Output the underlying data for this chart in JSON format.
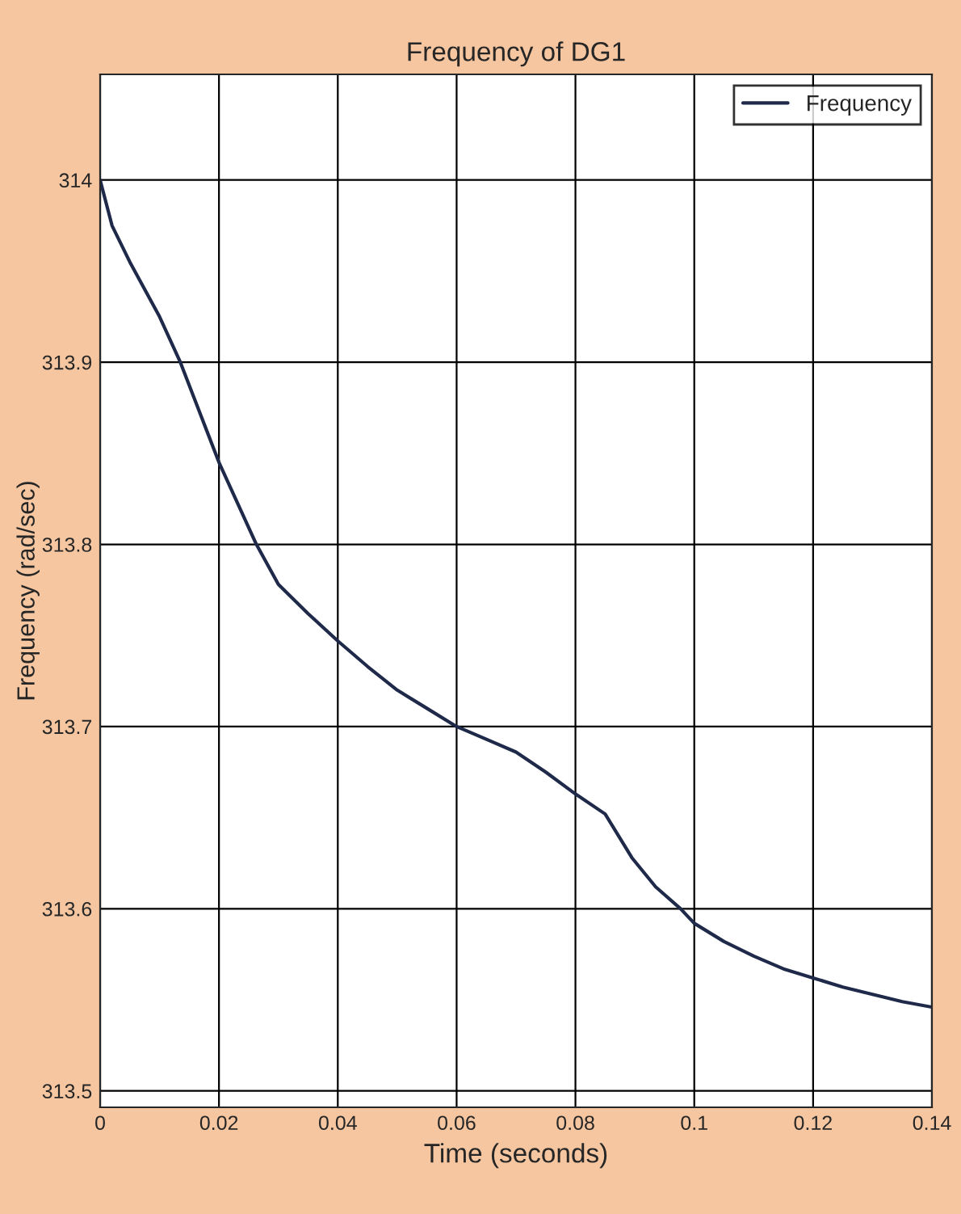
{
  "chart_data": {
    "type": "line",
    "title": "Frequency of DG1",
    "xlabel": "Time (seconds)",
    "ylabel": "Frequency (rad/sec)",
    "series": [
      {
        "name": "Frequency",
        "color": "#1f2a4a",
        "x": [
          0,
          0.002,
          0.005,
          0.01,
          0.0135,
          0.02,
          0.0263,
          0.03,
          0.035,
          0.04,
          0.045,
          0.05,
          0.055,
          0.06,
          0.065,
          0.07,
          0.075,
          0.08,
          0.085,
          0.0895,
          0.0935,
          0.0977,
          0.1,
          0.105,
          0.11,
          0.115,
          0.12,
          0.125,
          0.13,
          0.135,
          0.14
        ],
        "values": [
          314,
          313.975,
          313.955,
          313.925,
          313.9,
          313.845,
          313.8,
          313.778,
          313.762,
          313.747,
          313.733,
          313.72,
          313.71,
          313.7,
          313.693,
          313.686,
          313.675,
          313.663,
          313.652,
          313.628,
          313.612,
          313.6,
          313.592,
          313.582,
          313.574,
          313.567,
          313.562,
          313.557,
          313.553,
          313.549,
          313.546
        ]
      }
    ],
    "xlim": [
      0,
      0.14
    ],
    "ylim": [
      313.491,
      314.058
    ],
    "xticks": [
      0,
      0.02,
      0.04,
      0.06,
      0.08,
      0.1,
      0.12,
      0.14
    ],
    "yticks": [
      313.5,
      313.6,
      313.7,
      313.8,
      313.9,
      314
    ],
    "grid": true,
    "legend": "top right"
  }
}
